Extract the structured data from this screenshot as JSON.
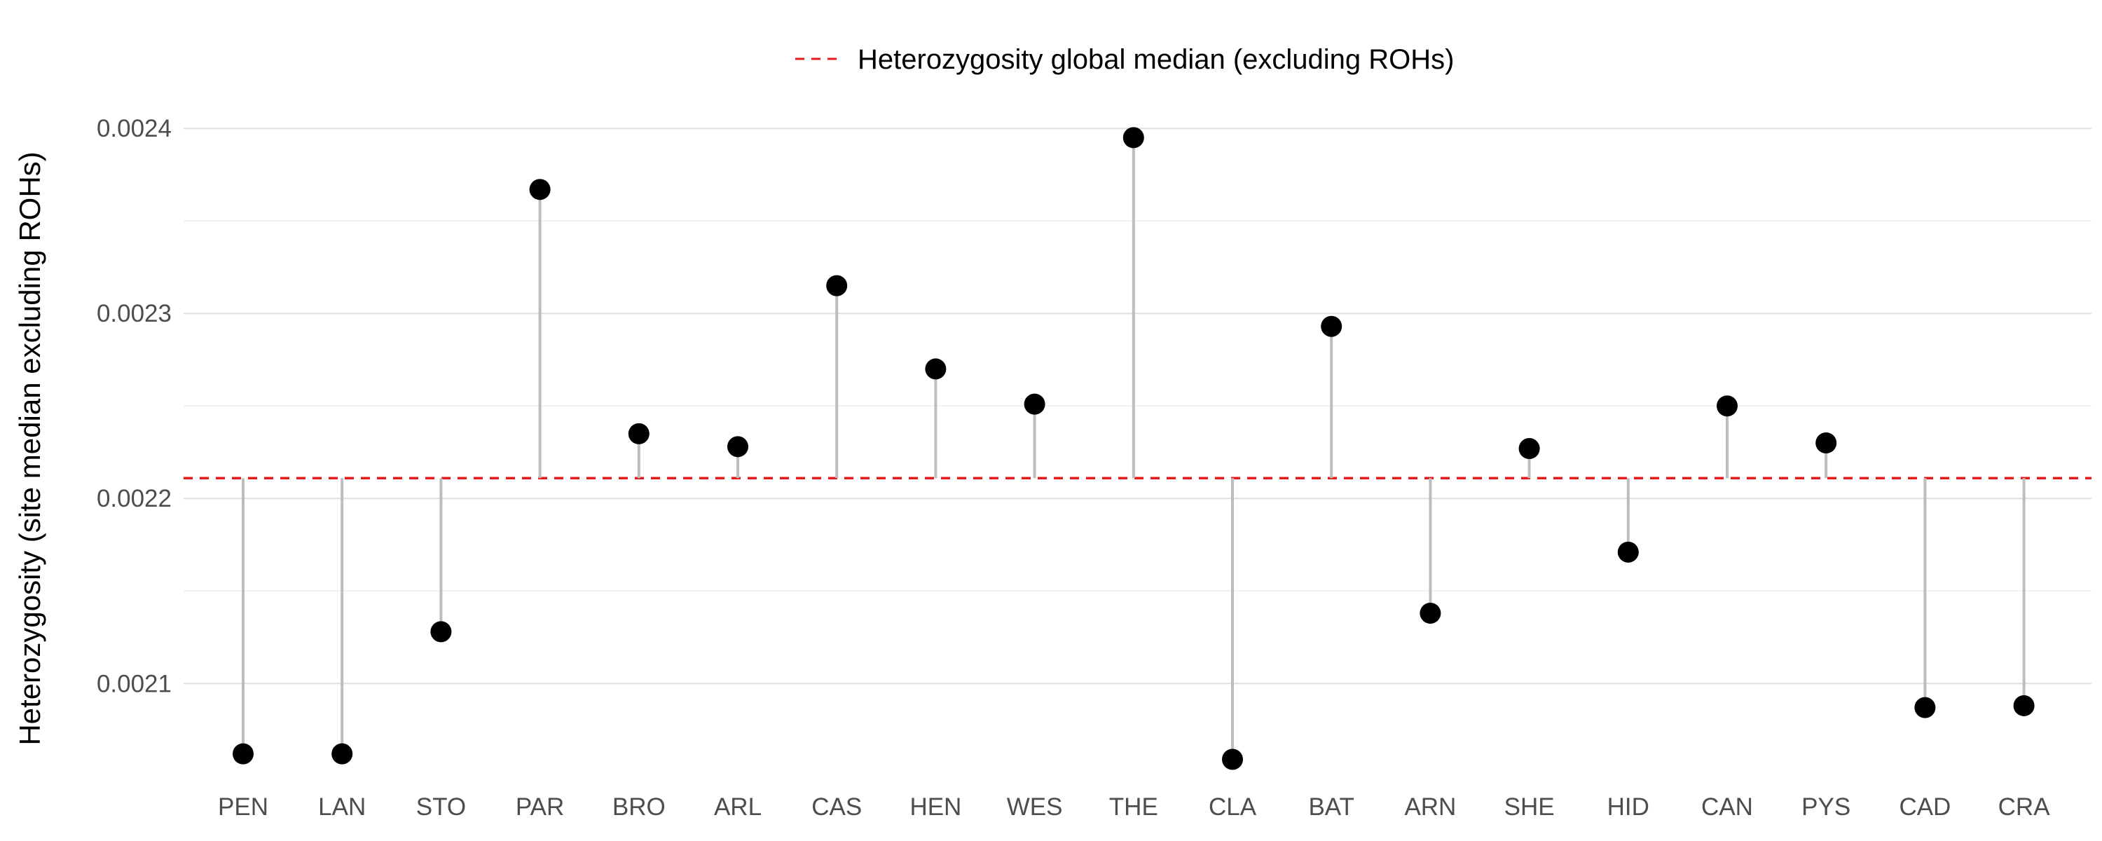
{
  "chart_data": {
    "type": "scatter",
    "subtype": "lollipop",
    "title": "",
    "xlabel": "",
    "ylabel": "Heterozygosity (site median excluding ROHs)",
    "categories": [
      "PEN",
      "LAN",
      "STO",
      "PAR",
      "BRO",
      "ARL",
      "CAS",
      "HEN",
      "WES",
      "THE",
      "CLA",
      "BAT",
      "ARN",
      "SHE",
      "HID",
      "CAN",
      "PYS",
      "CAD",
      "CRA"
    ],
    "values": [
      0.002062,
      0.002062,
      0.002128,
      0.002367,
      0.002235,
      0.002228,
      0.002315,
      0.00227,
      0.002251,
      0.002395,
      0.002059,
      0.002293,
      0.002138,
      0.002227,
      0.002171,
      0.00225,
      0.00223,
      0.002087,
      0.002088
    ],
    "reference_line": {
      "value": 0.002211,
      "label": "Heterozygosity global median (excluding ROHs)",
      "color": "#e41a1c",
      "style": "dashed"
    },
    "ylim": [
      0.002052,
      0.002405
    ],
    "yticks": [
      0.0021,
      0.0022,
      0.0023,
      0.0024
    ],
    "ytick_labels": [
      "0.0021",
      "0.0022",
      "0.0023",
      "0.0024"
    ],
    "grid": true,
    "legend_position": "top",
    "point_color": "#000000",
    "stem_color": "#bdbdbd"
  }
}
